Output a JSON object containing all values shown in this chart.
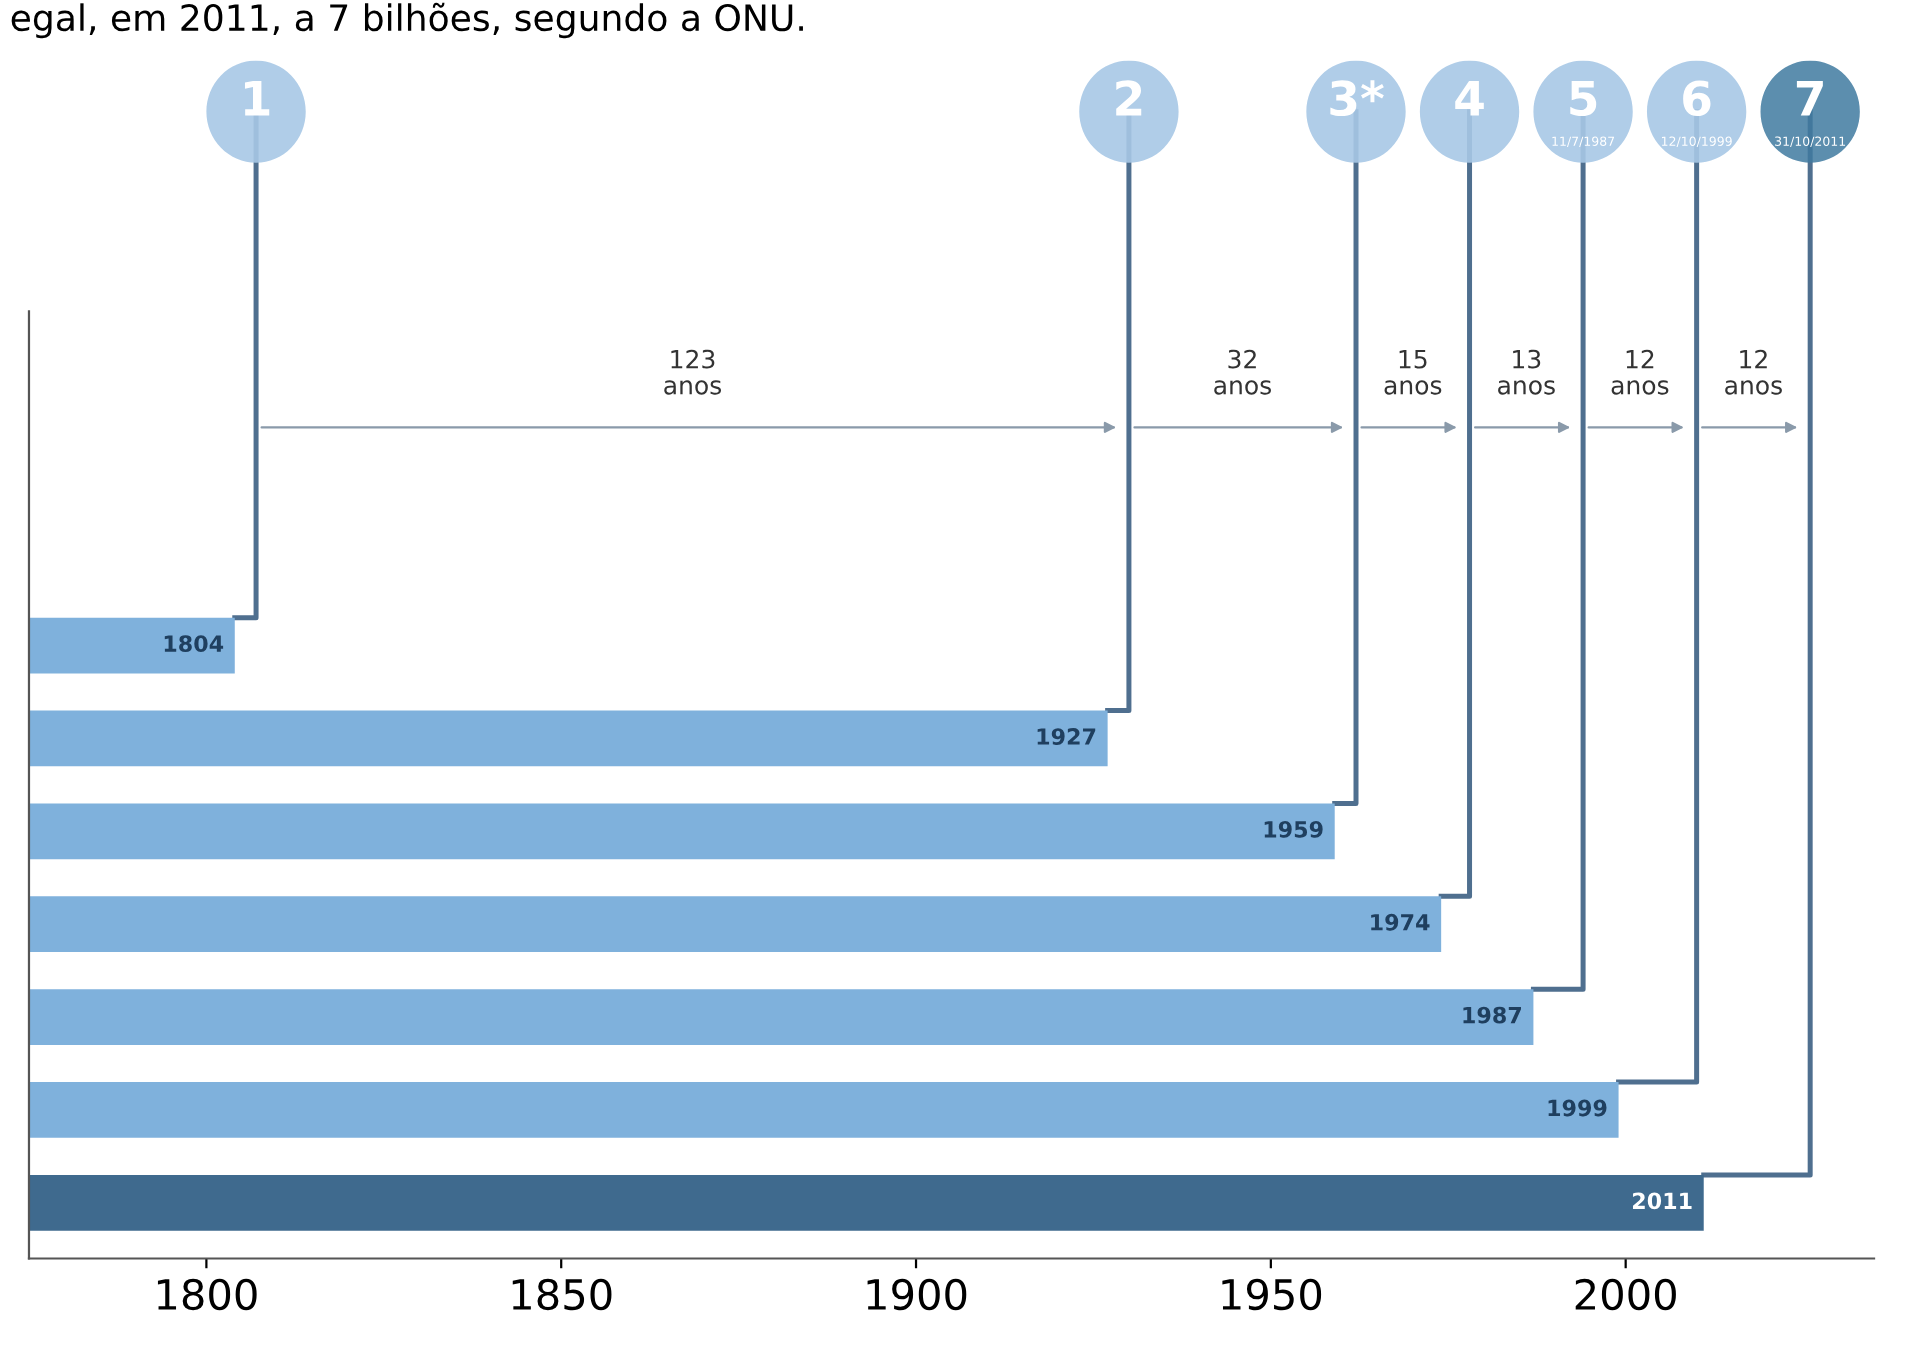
{
  "chart_data": {
    "type": "bar",
    "orientation": "horizontal",
    "title": "egal, em 2011, a 7 bilhões, segundo a ONU.",
    "categories": [
      null,
      null,
      null,
      null,
      null,
      null,
      null
    ],
    "values": [
      1804,
      1927,
      1959,
      1974,
      1987,
      1999,
      2011
    ],
    "colors": [
      "#7fb1dc",
      "#7fb1dc",
      "#7fb1dc",
      "#7fb1dc",
      "#7fb1dc",
      "#7fb1dc",
      "#3f6a8e"
    ],
    "data_labels": true,
    "xlim": [
      1775,
      2035
    ],
    "xticks": [
      1800,
      1850,
      1900,
      1950,
      2000
    ],
    "grid": false,
    "legend": false,
    "annotations": [
      "1",
      "2",
      "3*",
      "4",
      "5\n11/7/1987",
      "6\n12/10/1999",
      "7\n31/10/2011",
      "123\nanos",
      "32\nanos",
      "15\nanos",
      "13\nanos",
      "12\nanos",
      "12\nanos"
    ]
  }
}
